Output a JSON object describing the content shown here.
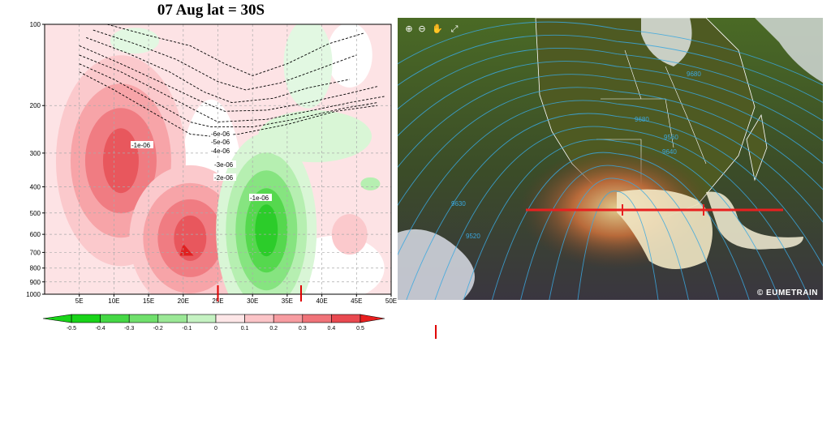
{
  "chart_data": [
    {
      "type": "heatmap",
      "title": "07 Aug lat = 30S",
      "xlabel": "",
      "ylabel": "",
      "x_ticks": [
        "5E",
        "10E",
        "15E",
        "20E",
        "25E",
        "30E",
        "35E",
        "40E",
        "45E",
        "50E"
      ],
      "x_range": [
        0,
        50
      ],
      "y_ticks": [
        100,
        200,
        300,
        400,
        500,
        600,
        700,
        800,
        900,
        1000
      ],
      "y_range": [
        100,
        1000
      ],
      "y_scale": "log",
      "y_inverted": true,
      "grid": true,
      "colorbar": {
        "ticks": [
          "-0.5",
          "-0.4",
          "-0.3",
          "-0.2",
          "-0.1",
          "0",
          "0.1",
          "0.2",
          "0.3",
          "0.4",
          "0.5"
        ],
        "placement": "bottom",
        "negative_color": "#19d419",
        "positive_color": "#e81e1e"
      },
      "filled_centers": [
        {
          "x": 11,
          "p": 320,
          "value": 0.4
        },
        {
          "x": 21,
          "p": 620,
          "value": 0.45
        },
        {
          "x": 32,
          "p": 580,
          "value": -0.45
        },
        {
          "x": 44,
          "p": 600,
          "value": 0.1
        }
      ],
      "contour_labels": [
        "-6e-06",
        "-5e-06",
        "-4e-06",
        "-3e-06",
        "-2e-06",
        "-1e-06",
        "-1e-06"
      ],
      "markers_x": [
        25,
        37
      ]
    }
  ],
  "satellite": {
    "logo_text": "© EUMETRAIN",
    "isobar_labels": [
      "9680",
      "9680",
      "9560",
      "9640",
      "9630",
      "9520"
    ],
    "tools": [
      "zoom-in",
      "zoom-out",
      "pan",
      "fullscreen"
    ],
    "cross_section_line_color": "#e82020"
  }
}
